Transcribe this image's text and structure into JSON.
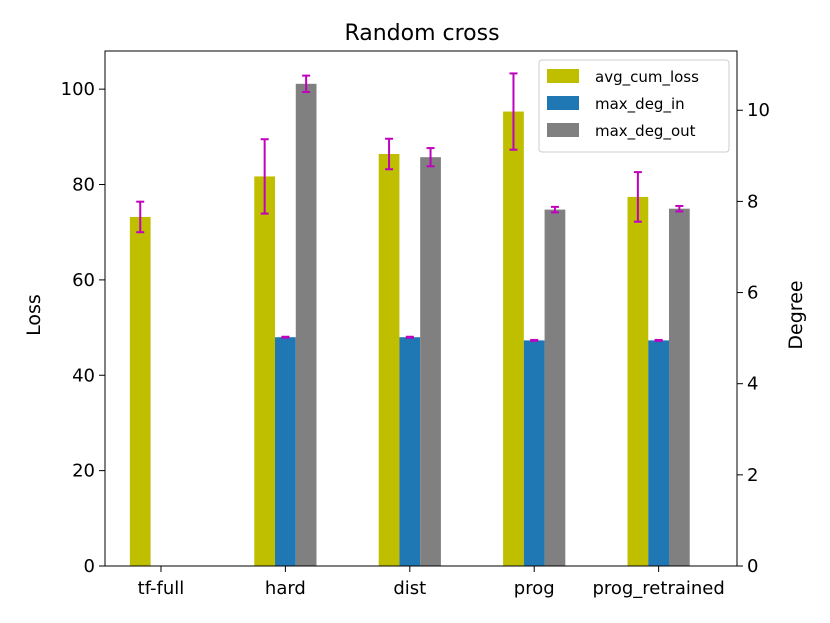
{
  "chart_data": {
    "type": "bar",
    "title": "Random cross",
    "xlabel": "",
    "ylabel": "Loss",
    "y2label": "Degree",
    "categories": [
      "tf-full",
      "hard",
      "dist",
      "prog",
      "prog_retrained"
    ],
    "ylim": [
      0,
      108
    ],
    "y2lim": [
      0,
      11.3
    ],
    "yticks": [
      0,
      20,
      40,
      60,
      80,
      100
    ],
    "y2ticks": [
      0,
      2,
      4,
      6,
      8,
      10
    ],
    "legend_position": "top-right",
    "series": [
      {
        "name": "avg_cum_loss",
        "axis": "left",
        "color": "#bfbf00",
        "values": [
          73.2,
          81.7,
          86.4,
          95.3,
          77.4
        ],
        "errors": [
          3.2,
          7.8,
          3.2,
          8.0,
          5.2
        ]
      },
      {
        "name": "max_deg_in",
        "axis": "right",
        "color": "#1f77b4",
        "values": [
          null,
          5.02,
          5.02,
          4.95,
          4.95
        ],
        "errors": [
          null,
          0.01,
          0.01,
          0.01,
          0.01
        ]
      },
      {
        "name": "max_deg_out",
        "axis": "right",
        "color": "#808080",
        "values": [
          null,
          10.58,
          8.97,
          7.82,
          7.84
        ],
        "errors": [
          null,
          0.18,
          0.2,
          0.06,
          0.06
        ]
      }
    ],
    "error_color": "#bf00bf"
  }
}
